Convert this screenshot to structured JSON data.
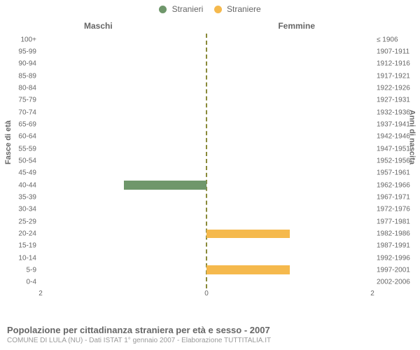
{
  "legend": {
    "male": {
      "label": "Stranieri",
      "color": "#6f976b"
    },
    "female": {
      "label": "Straniere",
      "color": "#f5b94d"
    }
  },
  "columns": {
    "male": "Maschi",
    "female": "Femmine"
  },
  "yaxis": {
    "left": "Fasce di età",
    "right": "Anni di nascita"
  },
  "chart": {
    "type": "population_pyramid",
    "xmax": 2,
    "xticks": [
      2,
      0,
      2
    ],
    "center_line_color": "#8a8a3a",
    "background_color": "#ffffff",
    "text_color": "#666666",
    "rows": [
      {
        "age": "100+",
        "birth": "≤ 1906",
        "m": 0,
        "f": 0
      },
      {
        "age": "95-99",
        "birth": "1907-1911",
        "m": 0,
        "f": 0
      },
      {
        "age": "90-94",
        "birth": "1912-1916",
        "m": 0,
        "f": 0
      },
      {
        "age": "85-89",
        "birth": "1917-1921",
        "m": 0,
        "f": 0
      },
      {
        "age": "80-84",
        "birth": "1922-1926",
        "m": 0,
        "f": 0
      },
      {
        "age": "75-79",
        "birth": "1927-1931",
        "m": 0,
        "f": 0
      },
      {
        "age": "70-74",
        "birth": "1932-1936",
        "m": 0,
        "f": 0
      },
      {
        "age": "65-69",
        "birth": "1937-1941",
        "m": 0,
        "f": 0
      },
      {
        "age": "60-64",
        "birth": "1942-1946",
        "m": 0,
        "f": 0
      },
      {
        "age": "55-59",
        "birth": "1947-1951",
        "m": 0,
        "f": 0
      },
      {
        "age": "50-54",
        "birth": "1952-1956",
        "m": 0,
        "f": 0
      },
      {
        "age": "45-49",
        "birth": "1957-1961",
        "m": 0,
        "f": 0
      },
      {
        "age": "40-44",
        "birth": "1962-1966",
        "m": 1,
        "f": 0
      },
      {
        "age": "35-39",
        "birth": "1967-1971",
        "m": 0,
        "f": 0
      },
      {
        "age": "30-34",
        "birth": "1972-1976",
        "m": 0,
        "f": 0
      },
      {
        "age": "25-29",
        "birth": "1977-1981",
        "m": 0,
        "f": 0
      },
      {
        "age": "20-24",
        "birth": "1982-1986",
        "m": 0,
        "f": 1
      },
      {
        "age": "15-19",
        "birth": "1987-1991",
        "m": 0,
        "f": 0
      },
      {
        "age": "10-14",
        "birth": "1992-1996",
        "m": 0,
        "f": 0
      },
      {
        "age": "5-9",
        "birth": "1997-2001",
        "m": 0,
        "f": 1
      },
      {
        "age": "0-4",
        "birth": "2002-2006",
        "m": 0,
        "f": 0
      }
    ]
  },
  "footer": {
    "title": "Popolazione per cittadinanza straniera per età e sesso - 2007",
    "subtitle": "COMUNE DI LULA (NU) - Dati ISTAT 1° gennaio 2007 - Elaborazione TUTTITALIA.IT"
  }
}
